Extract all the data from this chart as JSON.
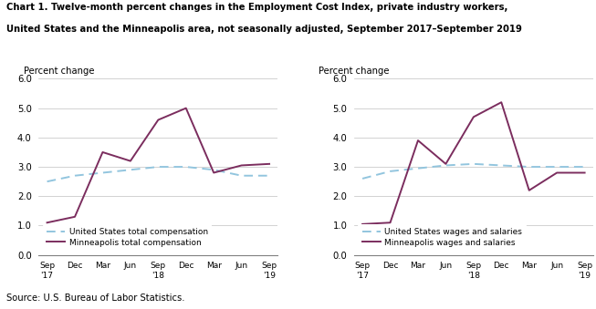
{
  "title_line1": "Chart 1. Twelve-month percent changes in the Employment Cost Index, private industry workers,",
  "title_line2": "United States and the Minneapolis area, not seasonally adjusted, September 2017–September 2019",
  "source": "Source: U.S. Bureau of Labor Statistics.",
  "x_labels": [
    "Sep\n'17",
    "Dec",
    "Mar",
    "Jun",
    "Sep\n'18",
    "Dec",
    "Mar",
    "Jun",
    "Sep\n'19"
  ],
  "ylim": [
    0.0,
    6.0
  ],
  "yticks": [
    0.0,
    1.0,
    2.0,
    3.0,
    4.0,
    5.0,
    6.0
  ],
  "ylabel": "Percent change",
  "left_chart": {
    "us_total": [
      2.5,
      2.7,
      2.8,
      2.9,
      3.0,
      3.0,
      2.9,
      2.7,
      2.7
    ],
    "mpls_total": [
      1.1,
      1.3,
      3.5,
      3.2,
      4.6,
      5.0,
      2.8,
      3.05,
      3.1
    ],
    "legend1": "United States total compensation",
    "legend2": "Minneapolis total compensation"
  },
  "right_chart": {
    "us_wages": [
      2.6,
      2.85,
      2.95,
      3.05,
      3.1,
      3.05,
      3.0,
      3.0,
      3.0
    ],
    "mpls_wages": [
      1.05,
      1.1,
      3.9,
      3.1,
      4.7,
      5.2,
      2.2,
      2.8,
      2.8
    ],
    "legend1": "United States wages and salaries",
    "legend2": "Minneapolis wages and salaries"
  },
  "us_line_color": "#92c5de",
  "mpls_line_color": "#7b2d5e",
  "line_width": 1.4,
  "grid_color": "#c0c0c0",
  "title_color": "#000000",
  "background_color": "#ffffff"
}
